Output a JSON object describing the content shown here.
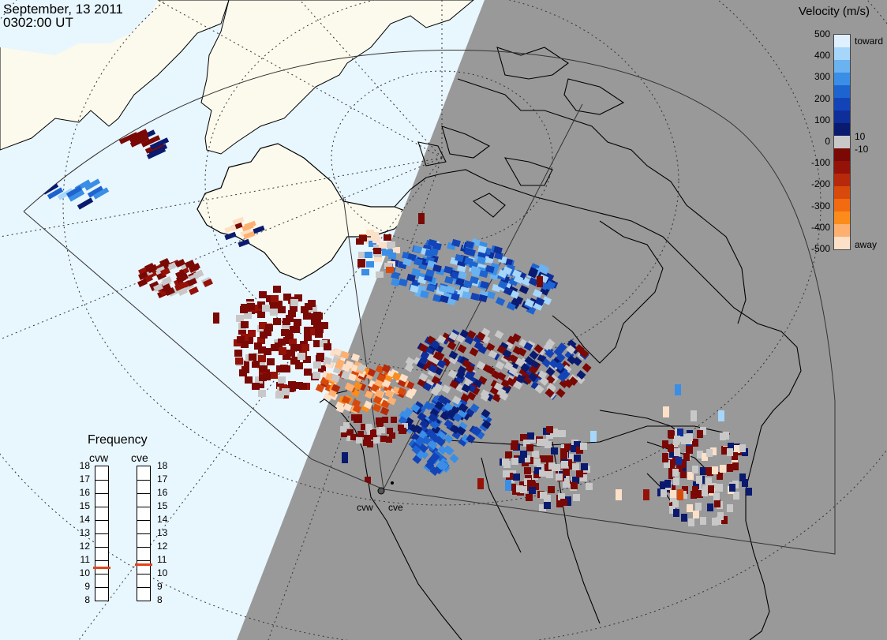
{
  "header": {
    "date": "September, 13 2011",
    "time": "0302:00 UT"
  },
  "velocity_scale": {
    "title": "Velocity (m/s)",
    "ticks_left": [
      "500",
      "400",
      "300",
      "200",
      "100",
      "0",
      "-100",
      "-200",
      "-300",
      "-400",
      "-500"
    ],
    "label_toward": "toward",
    "label_away": "away",
    "label_pos": "10",
    "label_neg": "-10",
    "colors": [
      "#fde0c8",
      "#fdb070",
      "#fb8c1c",
      "#f36b10",
      "#d84a0c",
      "#b6290b",
      "#941208",
      "#7a0804",
      "#c8c8c8",
      "#0a1a6e",
      "#0e2e9a",
      "#1244b8",
      "#1e64d0",
      "#3a8ee6",
      "#6ab2f0",
      "#a6d6fa",
      "#dff0fe"
    ]
  },
  "frequency": {
    "title": "Frequency",
    "radars": [
      "cvw",
      "cve"
    ],
    "scale": [
      "18",
      "17",
      "16",
      "15",
      "14",
      "13",
      "12",
      "11",
      "10",
      "9",
      "8"
    ],
    "selected_mhz": [
      10.5,
      10.7
    ]
  },
  "sites": [
    "cvw",
    "cve"
  ],
  "colors": {
    "night_shade": "#999999",
    "day_ocean": "#e8f6fe",
    "land_day": "#fcfaec",
    "land_line": "#000000"
  },
  "icons": [
    "radar-site-marker"
  ]
}
